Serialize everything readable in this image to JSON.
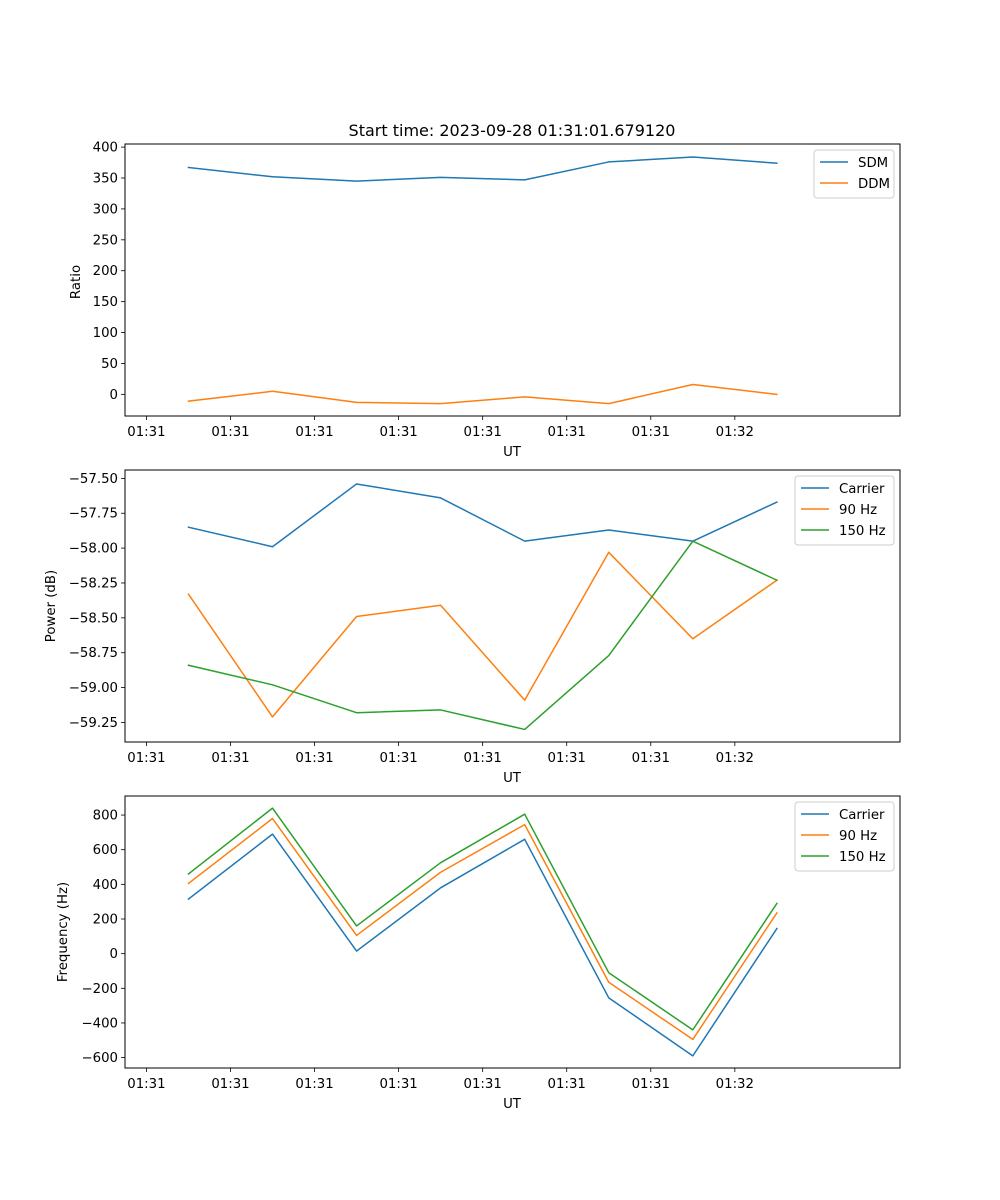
{
  "chart_data": [
    {
      "type": "line",
      "title": "Start time: 2023-09-28 01:31:01.679120",
      "xlabel": "UT",
      "ylabel": "Ratio",
      "x_tick_labels": [
        "01:31",
        "01:31",
        "01:31",
        "01:31",
        "01:31",
        "01:31",
        "01:31",
        "01:32"
      ],
      "x": [
        1,
        2,
        3,
        4,
        5,
        6,
        7,
        8
      ],
      "xlim": [
        0.245,
        9.465
      ],
      "ylim": [
        -35,
        405
      ],
      "yticks": [
        0,
        50,
        100,
        150,
        200,
        250,
        300,
        350,
        400
      ],
      "grid": false,
      "legend_loc": "upper right",
      "series": [
        {
          "name": "SDM",
          "color": "#1f77b4",
          "values": [
            367,
            352,
            345,
            351,
            347,
            376,
            384,
            374
          ]
        },
        {
          "name": "DDM",
          "color": "#ff7f0e",
          "values": [
            -11,
            5,
            -13,
            -15,
            -4,
            -15,
            16,
            0
          ]
        }
      ]
    },
    {
      "type": "line",
      "title": "",
      "xlabel": "UT",
      "ylabel": "Power (dB)",
      "x_tick_labels": [
        "01:31",
        "01:31",
        "01:31",
        "01:31",
        "01:31",
        "01:31",
        "01:31",
        "01:32"
      ],
      "x": [
        1,
        2,
        3,
        4,
        5,
        6,
        7,
        8
      ],
      "xlim": [
        0.245,
        9.465
      ],
      "ylim": [
        -59.39,
        -57.44
      ],
      "yticks": [
        -59.25,
        -59.0,
        -58.75,
        -58.5,
        -58.25,
        -58.0,
        -57.75,
        -57.5
      ],
      "ytick_labels": [
        "−59.25",
        "−59.00",
        "−58.75",
        "−58.50",
        "−58.25",
        "−58.00",
        "−57.75",
        "−57.50"
      ],
      "grid": false,
      "legend_loc": "upper right",
      "series": [
        {
          "name": "Carrier",
          "color": "#1f77b4",
          "values": [
            -57.85,
            -57.99,
            -57.54,
            -57.64,
            -57.95,
            -57.87,
            -57.95,
            -57.67
          ]
        },
        {
          "name": "90 Hz",
          "color": "#ff7f0e",
          "values": [
            -58.33,
            -59.21,
            -58.49,
            -58.41,
            -59.09,
            -58.03,
            -58.65,
            -58.23
          ]
        },
        {
          "name": "150 Hz",
          "color": "#2ca02c",
          "values": [
            -58.84,
            -58.98,
            -59.18,
            -59.16,
            -59.3,
            -58.77,
            -57.95,
            -58.23
          ]
        }
      ]
    },
    {
      "type": "line",
      "title": "",
      "xlabel": "UT",
      "ylabel": "Frequency (Hz)",
      "x_tick_labels": [
        "01:31",
        "01:31",
        "01:31",
        "01:31",
        "01:31",
        "01:31",
        "01:31",
        "01:32"
      ],
      "x": [
        1,
        2,
        3,
        4,
        5,
        6,
        7,
        8
      ],
      "xlim": [
        0.245,
        9.465
      ],
      "ylim": [
        -660,
        910
      ],
      "yticks": [
        -600,
        -400,
        -200,
        0,
        200,
        400,
        600,
        800
      ],
      "ytick_labels": [
        "−600",
        "−400",
        "−200",
        "0",
        "200",
        "400",
        "600",
        "800"
      ],
      "grid": false,
      "legend_loc": "upper right",
      "series": [
        {
          "name": "Carrier",
          "color": "#1f77b4",
          "values": [
            315,
            690,
            15,
            380,
            660,
            -255,
            -590,
            145
          ]
        },
        {
          "name": "90 Hz",
          "color": "#ff7f0e",
          "values": [
            405,
            780,
            105,
            470,
            745,
            -165,
            -495,
            235
          ]
        },
        {
          "name": "150 Hz",
          "color": "#2ca02c",
          "values": [
            460,
            840,
            160,
            525,
            805,
            -110,
            -440,
            290
          ]
        }
      ]
    }
  ]
}
